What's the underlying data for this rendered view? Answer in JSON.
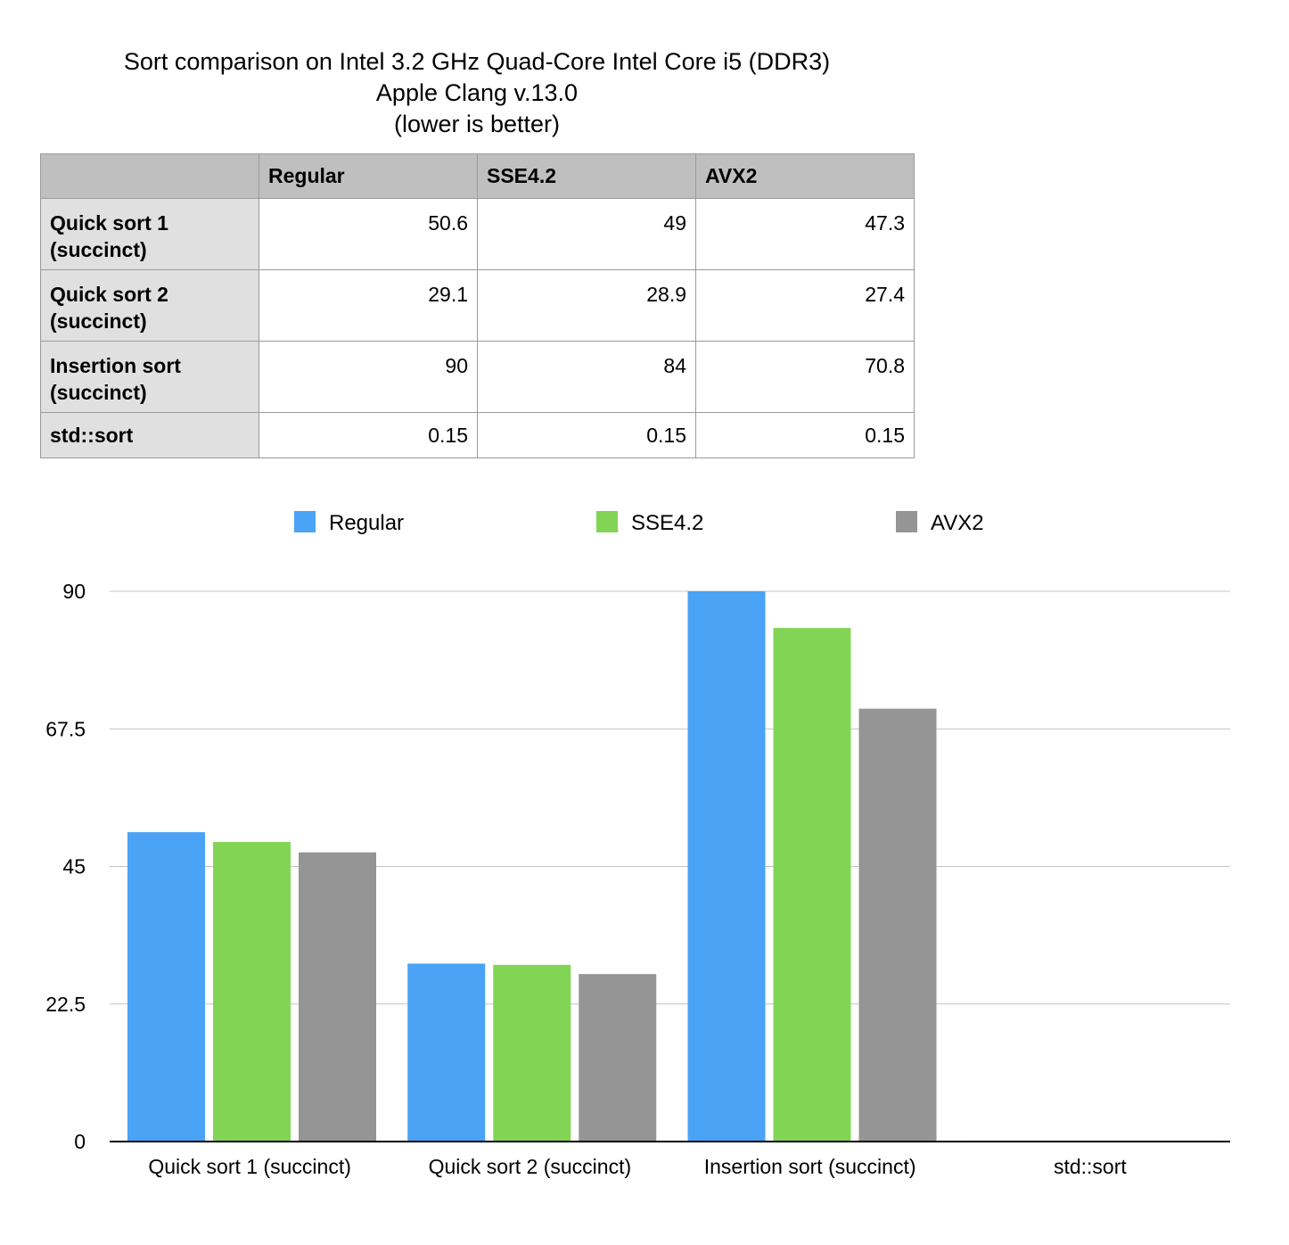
{
  "title_lines": [
    "Sort comparison on Intel 3.2 GHz Quad-Core Intel Core i5 (DDR3)",
    "Apple Clang v.13.0",
    "(lower is better)"
  ],
  "table": {
    "columns": [
      "",
      "Regular",
      "SSE4.2",
      "AVX2"
    ],
    "rows": [
      {
        "label_lines": [
          "Quick sort 1",
          "(succinct)"
        ],
        "values": [
          "50.6",
          "49",
          "47.3"
        ]
      },
      {
        "label_lines": [
          "Quick sort 2",
          "(succinct)"
        ],
        "values": [
          "29.1",
          "28.9",
          "27.4"
        ]
      },
      {
        "label_lines": [
          "Insertion sort",
          "(succinct)"
        ],
        "values": [
          "90",
          "84",
          "70.8"
        ]
      },
      {
        "label_lines": [
          "std::sort"
        ],
        "values": [
          "0.15",
          "0.15",
          "0.15"
        ]
      }
    ]
  },
  "chart_data": {
    "type": "bar",
    "categories": [
      "Quick sort 1 (succinct)",
      "Quick sort 2 (succinct)",
      "Insertion sort (succinct)",
      "std::sort"
    ],
    "series": [
      {
        "name": "Regular",
        "color": "#4aa3f5",
        "values": [
          50.6,
          29.1,
          90,
          0.15
        ]
      },
      {
        "name": "SSE4.2",
        "color": "#82d455",
        "values": [
          49,
          28.9,
          84,
          0.15
        ]
      },
      {
        "name": "AVX2",
        "color": "#959595",
        "values": [
          47.3,
          27.4,
          70.8,
          0.15
        ]
      }
    ],
    "yticks": [
      "0",
      "22.5",
      "45",
      "67.5",
      "90"
    ],
    "ylim": [
      0,
      90
    ],
    "grid": true,
    "legend_position": "top"
  }
}
